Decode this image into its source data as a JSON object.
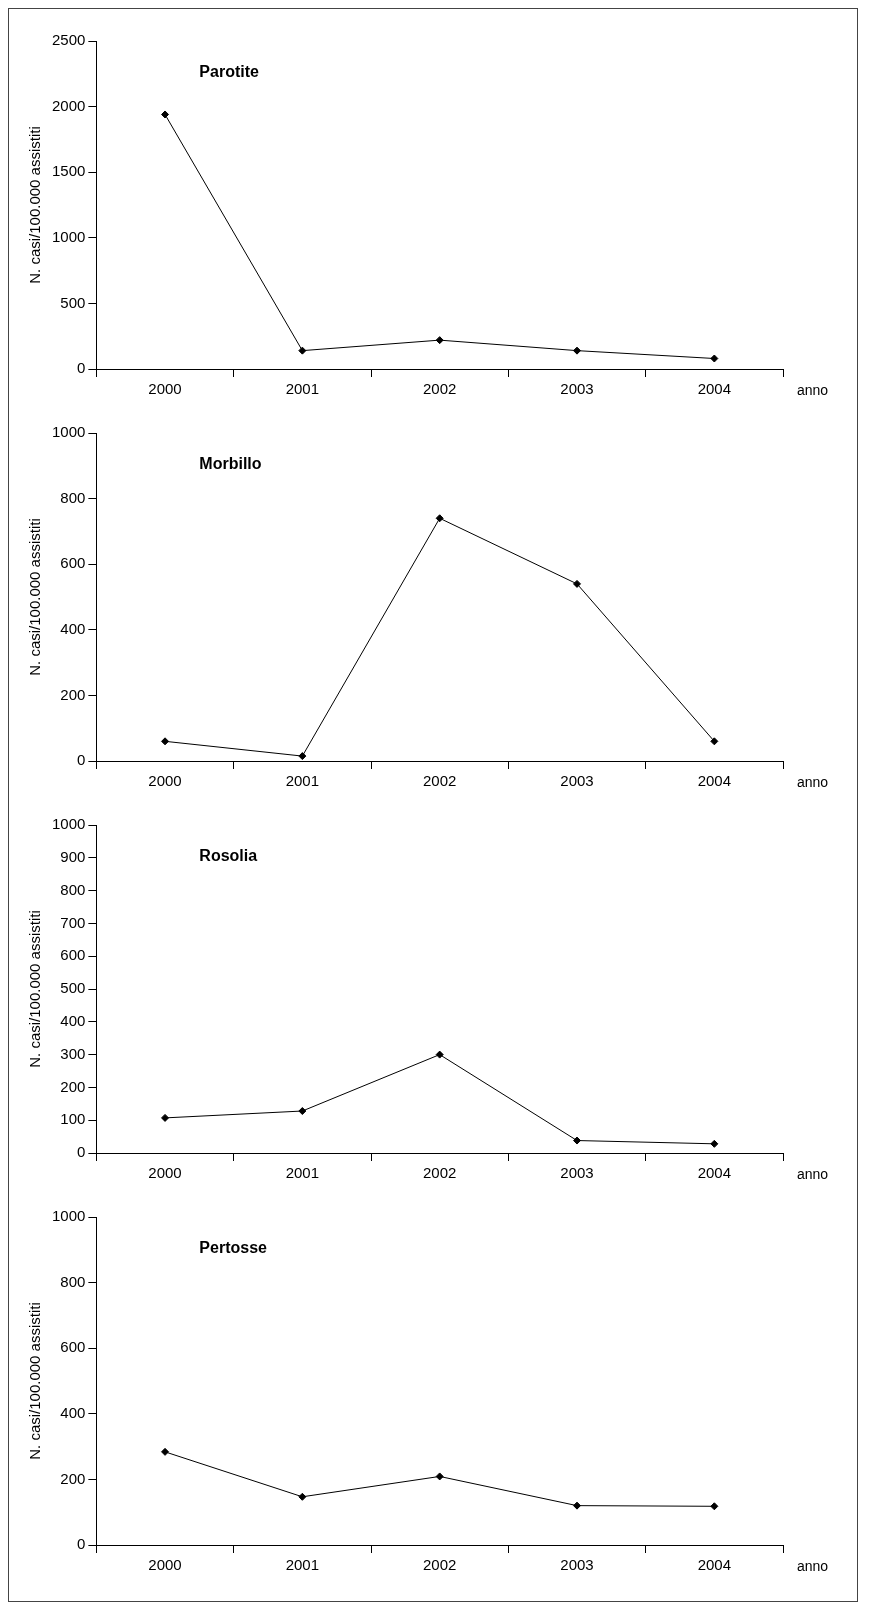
{
  "chart_data": [
    {
      "type": "line",
      "title": "Parotite",
      "categories": [
        "2000",
        "2001",
        "2002",
        "2003",
        "2004"
      ],
      "values": [
        1940,
        140,
        220,
        140,
        80
      ],
      "color": "#000000",
      "ylim": [
        0,
        2500
      ],
      "yticks": [
        0,
        500,
        1000,
        1500,
        2000,
        2500
      ],
      "ylabel": "N. casi/100.000 assistiti",
      "xlabel": "anno",
      "marker": "diamond",
      "line_style": "solid",
      "grid": false
    },
    {
      "type": "line",
      "title": "Morbillo",
      "categories": [
        "2000",
        "2001",
        "2002",
        "2003",
        "2004"
      ],
      "values": [
        60,
        15,
        740,
        540,
        60
      ],
      "color": "#000000",
      "ylim": [
        0,
        1000
      ],
      "yticks": [
        0,
        200,
        400,
        600,
        800,
        1000
      ],
      "ylabel": "N. casi/100.000 assistiti",
      "xlabel": "anno",
      "marker": "diamond",
      "line_style": "solid",
      "grid": false
    },
    {
      "type": "line",
      "title": "Rosolia",
      "categories": [
        "2000",
        "2001",
        "2002",
        "2003",
        "2004"
      ],
      "values": [
        107,
        128,
        300,
        38,
        28
      ],
      "color": "#000000",
      "ylim": [
        0,
        1000
      ],
      "yticks": [
        0,
        100,
        200,
        300,
        400,
        500,
        600,
        700,
        800,
        900,
        1000
      ],
      "ylabel": "N. casi/100.000 assistiti",
      "xlabel": "anno",
      "marker": "diamond",
      "line_style": "solid",
      "grid": false
    },
    {
      "type": "line",
      "title": "Pertosse",
      "categories": [
        "2000",
        "2001",
        "2002",
        "2003",
        "2004"
      ],
      "values": [
        284,
        147,
        209,
        120,
        118
      ],
      "color": "#000000",
      "ylim": [
        0,
        1000
      ],
      "yticks": [
        0,
        200,
        400,
        600,
        800,
        1000
      ],
      "ylabel": "N. casi/100.000 assistiti",
      "xlabel": "anno",
      "marker": "diamond",
      "line_style": "solid",
      "grid": false
    }
  ]
}
